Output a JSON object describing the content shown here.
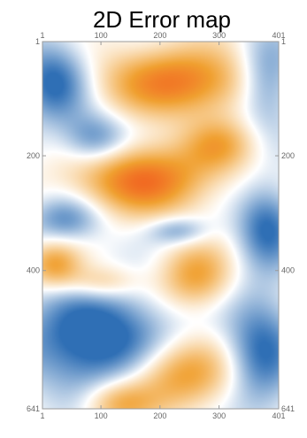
{
  "chart_data": {
    "type": "heatmap",
    "title": "2D Error map",
    "x_range": [
      1,
      401
    ],
    "y_range": [
      1,
      641
    ],
    "y_axis_direction": "top-to-bottom",
    "x_ticks_top": [
      "1",
      "100",
      "200",
      "300",
      "401"
    ],
    "x_ticks_bottom": [
      "1",
      "100",
      "200",
      "300",
      "401"
    ],
    "y_ticks_left": [
      "1",
      "200",
      "400",
      "641"
    ],
    "y_ticks_right": [
      "1",
      "200",
      "400",
      "641"
    ],
    "colormap": [
      "#2f6fb5",
      "#ffffff",
      "#f0a030",
      "#f25a1e"
    ],
    "frame_color": "#9a9a9a",
    "regions": [
      {
        "sign": "positive",
        "center": [
          230,
          70
        ],
        "radius": [
          130,
          60
        ],
        "strength": 1.2
      },
      {
        "sign": "positive",
        "center": [
          170,
          240
        ],
        "radius": [
          110,
          60
        ],
        "strength": 1.3
      },
      {
        "sign": "positive",
        "center": [
          300,
          180
        ],
        "radius": [
          60,
          45
        ],
        "strength": 0.7
      },
      {
        "sign": "positive",
        "center": [
          20,
          390
        ],
        "radius": [
          45,
          40
        ],
        "strength": 0.9
      },
      {
        "sign": "positive",
        "center": [
          260,
          410
        ],
        "radius": [
          60,
          55
        ],
        "strength": 0.9
      },
      {
        "sign": "positive",
        "center": [
          100,
          420
        ],
        "radius": [
          60,
          30
        ],
        "strength": 0.6
      },
      {
        "sign": "positive",
        "center": [
          235,
          580
        ],
        "radius": [
          90,
          60
        ],
        "strength": 1.0
      },
      {
        "sign": "positive",
        "center": [
          130,
          630
        ],
        "radius": [
          60,
          40
        ],
        "strength": 0.8
      },
      {
        "sign": "negative",
        "center": [
          20,
          70
        ],
        "radius": [
          60,
          70
        ],
        "strength": 1.0
      },
      {
        "sign": "negative",
        "center": [
          380,
          70
        ],
        "radius": [
          50,
          80
        ],
        "strength": 0.8
      },
      {
        "sign": "negative",
        "center": [
          90,
          170
        ],
        "radius": [
          55,
          45
        ],
        "strength": 0.8
      },
      {
        "sign": "negative",
        "center": [
          380,
          320
        ],
        "radius": [
          50,
          70
        ],
        "strength": 0.9
      },
      {
        "sign": "negative",
        "center": [
          40,
          310
        ],
        "radius": [
          60,
          40
        ],
        "strength": 0.7
      },
      {
        "sign": "negative",
        "center": [
          90,
          520
        ],
        "radius": [
          120,
          90
        ],
        "strength": 1.2
      },
      {
        "sign": "negative",
        "center": [
          370,
          540
        ],
        "radius": [
          60,
          110
        ],
        "strength": 0.9
      },
      {
        "sign": "negative",
        "center": [
          230,
          330
        ],
        "radius": [
          50,
          25
        ],
        "strength": 0.6
      }
    ]
  }
}
